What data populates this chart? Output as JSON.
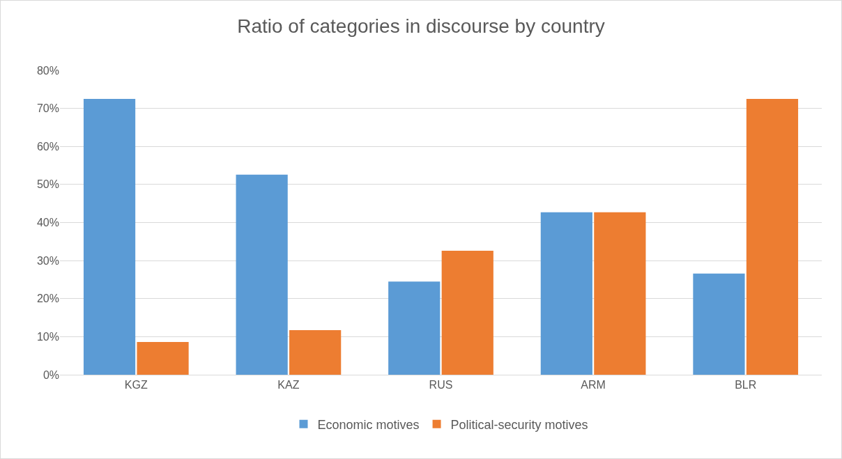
{
  "chart_data": {
    "type": "bar",
    "title": "Ratio of categories in discourse by country",
    "categories": [
      "KGZ",
      "KAZ",
      "RUS",
      "ARM",
      "BLR"
    ],
    "series": [
      {
        "name": "Economic motives",
        "color": "#5b9bd5",
        "values": [
          72.5,
          52.6,
          24.5,
          42.7,
          26.6
        ]
      },
      {
        "name": "Political-security motives",
        "color": "#ed7d31",
        "values": [
          8.6,
          11.7,
          32.6,
          42.7,
          72.5
        ]
      }
    ],
    "ylim": [
      0,
      80
    ],
    "yticks": [
      {
        "value": 0,
        "label": "0%"
      },
      {
        "value": 10,
        "label": "10%"
      },
      {
        "value": 20,
        "label": "20%"
      },
      {
        "value": 30,
        "label": "30%"
      },
      {
        "value": 40,
        "label": "40%"
      },
      {
        "value": 50,
        "label": "50%"
      },
      {
        "value": 60,
        "label": "60%"
      },
      {
        "value": 70,
        "label": "70%"
      },
      {
        "value": 80,
        "label": "80%"
      }
    ],
    "grid": "y",
    "legend": "bottom"
  }
}
